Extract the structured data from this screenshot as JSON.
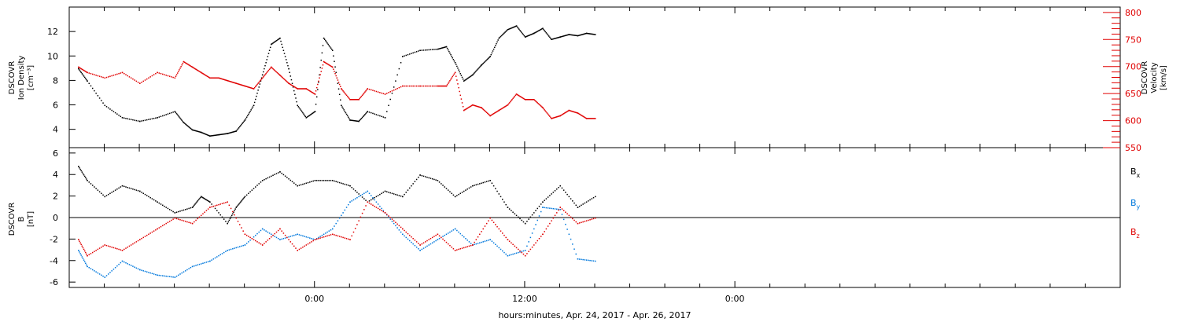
{
  "chart_data": {
    "type": "scatter",
    "xlabel": "hours:minutes, Apr. 24, 2017 - Apr. 26, 2017",
    "x_range_hours": [
      -14,
      46
    ],
    "x_tick_labels": [
      {
        "hour": 0,
        "label": "0:00"
      },
      {
        "hour": 12,
        "label": "12:00"
      },
      {
        "hour": 24,
        "label": "0:00"
      }
    ],
    "x_minor_tick_step_hours": 2,
    "panels": [
      {
        "id": "density_velocity",
        "left_ylabel": [
          "DSCOVR",
          "Ion Density",
          "[cm⁻³]"
        ],
        "right_ylabel": [
          "DSCOVR",
          "Velocity",
          "[km/s]"
        ],
        "left_ylim": [
          2.5,
          14
        ],
        "left_ticks": [
          4,
          6,
          8,
          10,
          12
        ],
        "right_ylim": [
          550,
          810
        ],
        "right_ticks": [
          550,
          600,
          650,
          700,
          750,
          800
        ],
        "series": [
          {
            "color": "#000000",
            "axis": "left",
            "points": [
              [
                -13.5,
                9
              ],
              [
                -13,
                8
              ],
              [
                -12,
                6
              ],
              [
                -11,
                5
              ],
              [
                -10,
                4.7
              ],
              [
                -9,
                5
              ],
              [
                -8,
                5.5
              ],
              [
                -7.5,
                4.6
              ],
              [
                -7,
                4
              ],
              [
                -6.5,
                3.8
              ],
              [
                -6,
                3.5
              ],
              [
                -5.5,
                3.6
              ],
              [
                -5,
                3.7
              ],
              [
                -4.5,
                3.9
              ],
              [
                -4,
                4.8
              ],
              [
                -3.5,
                6
              ],
              [
                -3,
                8.5
              ],
              [
                -2.5,
                11
              ],
              [
                -2,
                11.5
              ],
              [
                -1.5,
                9
              ],
              [
                -1,
                6
              ],
              [
                -0.5,
                5
              ],
              [
                0,
                5.5
              ],
              [
                0.5,
                11.5
              ],
              [
                1,
                10.5
              ],
              [
                1.5,
                6
              ],
              [
                2,
                4.8
              ],
              [
                2.5,
                4.7
              ],
              [
                3,
                5.5
              ],
              [
                4,
                5
              ],
              [
                5,
                10
              ],
              [
                6,
                10.5
              ],
              [
                7,
                10.6
              ],
              [
                7.5,
                10.8
              ],
              [
                8,
                9.5
              ],
              [
                8.5,
                8
              ],
              [
                9,
                8.5
              ],
              [
                9.5,
                9.3
              ],
              [
                10,
                10
              ],
              [
                10.5,
                11.5
              ],
              [
                11,
                12.2
              ],
              [
                11.5,
                12.5
              ],
              [
                12,
                11.6
              ],
              [
                12.5,
                11.9
              ],
              [
                13,
                12.3
              ],
              [
                13.5,
                11.4
              ],
              [
                14,
                11.6
              ],
              [
                14.5,
                11.8
              ],
              [
                15,
                11.7
              ],
              [
                15.5,
                11.9
              ],
              [
                16,
                11.8
              ]
            ]
          },
          {
            "color": "#e00000",
            "axis": "right",
            "points": [
              [
                -13.5,
                700
              ],
              [
                -13,
                690
              ],
              [
                -12,
                680
              ],
              [
                -11,
                690
              ],
              [
                -10,
                670
              ],
              [
                -9,
                690
              ],
              [
                -8,
                680
              ],
              [
                -7.5,
                710
              ],
              [
                -7,
                700
              ],
              [
                -6.5,
                690
              ],
              [
                -6,
                680
              ],
              [
                -5.5,
                680
              ],
              [
                -5,
                675
              ],
              [
                -4.5,
                670
              ],
              [
                -4,
                665
              ],
              [
                -3.5,
                660
              ],
              [
                -3,
                680
              ],
              [
                -2.5,
                700
              ],
              [
                -2,
                685
              ],
              [
                -1.5,
                670
              ],
              [
                -1,
                660
              ],
              [
                -0.5,
                660
              ],
              [
                0,
                650
              ],
              [
                0.5,
                710
              ],
              [
                1,
                700
              ],
              [
                1.5,
                660
              ],
              [
                2,
                640
              ],
              [
                2.5,
                640
              ],
              [
                3,
                660
              ],
              [
                4,
                650
              ],
              [
                5,
                665
              ],
              [
                6,
                665
              ],
              [
                7,
                665
              ],
              [
                7.5,
                665
              ],
              [
                8,
                690
              ],
              [
                8.5,
                620
              ],
              [
                9,
                630
              ],
              [
                9.5,
                625
              ],
              [
                10,
                610
              ],
              [
                10.5,
                620
              ],
              [
                11,
                630
              ],
              [
                11.5,
                650
              ],
              [
                12,
                640
              ],
              [
                12.5,
                640
              ],
              [
                13,
                625
              ],
              [
                13.5,
                605
              ],
              [
                14,
                610
              ],
              [
                14.5,
                620
              ],
              [
                15,
                615
              ],
              [
                15.5,
                605
              ],
              [
                16,
                605
              ]
            ]
          }
        ]
      },
      {
        "id": "magnetic_field",
        "left_ylabel": [
          "DSCOVR",
          "B",
          "[nT]"
        ],
        "left_ylim": [
          -6.5,
          6.5
        ],
        "left_ticks": [
          -6,
          -4,
          -2,
          0,
          2,
          4,
          6
        ],
        "zero_line": true,
        "legend_placement": "right",
        "series": [
          {
            "name": "Bx",
            "label_main": "B",
            "label_sub": "x",
            "color": "#000000",
            "points": [
              [
                -13.5,
                4.8
              ],
              [
                -13,
                3.5
              ],
              [
                -12,
                2
              ],
              [
                -11,
                3
              ],
              [
                -10,
                2.5
              ],
              [
                -9,
                1.5
              ],
              [
                -8,
                0.5
              ],
              [
                -7,
                1
              ],
              [
                -6.5,
                2
              ],
              [
                -6,
                1.5
              ],
              [
                -5,
                -0.5
              ],
              [
                -4.5,
                1
              ],
              [
                -4,
                2
              ],
              [
                -3,
                3.5
              ],
              [
                -2,
                4.3
              ],
              [
                -1,
                3
              ],
              [
                0,
                3.5
              ],
              [
                1,
                3.5
              ],
              [
                2,
                3
              ],
              [
                3,
                1.5
              ],
              [
                4,
                2.5
              ],
              [
                5,
                2
              ],
              [
                6,
                4
              ],
              [
                7,
                3.5
              ],
              [
                8,
                2
              ],
              [
                9,
                3
              ],
              [
                10,
                3.5
              ],
              [
                11,
                1
              ],
              [
                12,
                -0.5
              ],
              [
                13,
                1.5
              ],
              [
                14,
                3
              ],
              [
                15,
                1
              ],
              [
                16,
                2
              ]
            ]
          },
          {
            "name": "By",
            "label_main": "B",
            "label_sub": "y",
            "color": "#0078dc",
            "points": [
              [
                -13.5,
                -3
              ],
              [
                -13,
                -4.5
              ],
              [
                -12,
                -5.5
              ],
              [
                -11,
                -4
              ],
              [
                -10,
                -4.8
              ],
              [
                -9,
                -5.3
              ],
              [
                -8,
                -5.5
              ],
              [
                -7,
                -4.5
              ],
              [
                -6,
                -4
              ],
              [
                -5,
                -3
              ],
              [
                -4,
                -2.5
              ],
              [
                -3,
                -1
              ],
              [
                -2,
                -2
              ],
              [
                -1,
                -1.5
              ],
              [
                0,
                -2
              ],
              [
                1,
                -1
              ],
              [
                2,
                1.5
              ],
              [
                3,
                2.5
              ],
              [
                4,
                0.5
              ],
              [
                5,
                -1.5
              ],
              [
                6,
                -3
              ],
              [
                7,
                -2
              ],
              [
                8,
                -1
              ],
              [
                9,
                -2.5
              ],
              [
                10,
                -2
              ],
              [
                11,
                -3.5
              ],
              [
                12,
                -3
              ],
              [
                13,
                1
              ],
              [
                14,
                0.8
              ],
              [
                15,
                -3.8
              ],
              [
                16,
                -4
              ]
            ]
          },
          {
            "name": "Bz",
            "label_main": "B",
            "label_sub": "z",
            "color": "#e00000",
            "points": [
              [
                -13.5,
                -2
              ],
              [
                -13,
                -3.5
              ],
              [
                -12,
                -2.5
              ],
              [
                -11,
                -3
              ],
              [
                -10,
                -2
              ],
              [
                -9,
                -1
              ],
              [
                -8,
                0
              ],
              [
                -7,
                -0.5
              ],
              [
                -6,
                1
              ],
              [
                -5,
                1.5
              ],
              [
                -4,
                -1.5
              ],
              [
                -3,
                -2.5
              ],
              [
                -2,
                -1
              ],
              [
                -1,
                -3
              ],
              [
                0,
                -2
              ],
              [
                1,
                -1.5
              ],
              [
                2,
                -2
              ],
              [
                3,
                1.5
              ],
              [
                4,
                0.5
              ],
              [
                5,
                -1
              ],
              [
                6,
                -2.5
              ],
              [
                7,
                -1.5
              ],
              [
                8,
                -3
              ],
              [
                9,
                -2.5
              ],
              [
                10,
                0
              ],
              [
                11,
                -2
              ],
              [
                12,
                -3.5
              ],
              [
                13,
                -1.5
              ],
              [
                14,
                1
              ],
              [
                15,
                -0.5
              ],
              [
                16,
                0
              ]
            ]
          }
        ]
      }
    ]
  }
}
